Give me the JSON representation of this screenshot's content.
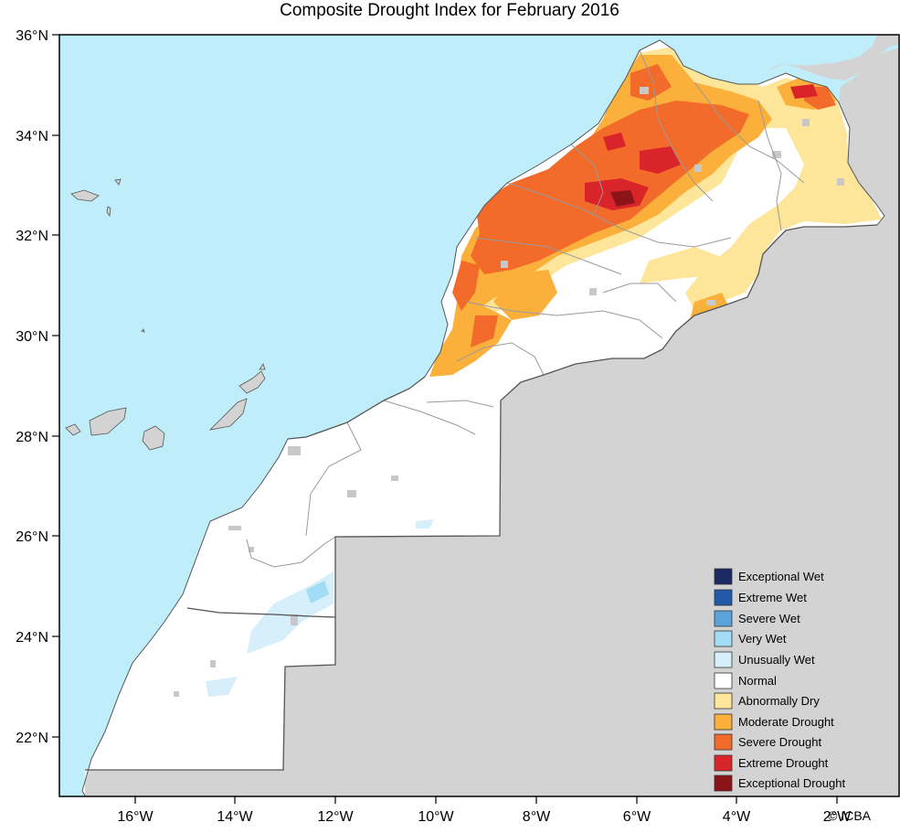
{
  "title": "Composite Drought Index for February 2016",
  "credit": "© ICBA",
  "axes": {
    "lat_labels": [
      "36°N",
      "34°N",
      "32°N",
      "30°N",
      "28°N",
      "26°N",
      "24°N",
      "22°N"
    ],
    "lon_labels": [
      "16°W",
      "14°W",
      "12°W",
      "10°W",
      "8°W",
      "6°W",
      "4°W",
      "2°W"
    ]
  },
  "colors": {
    "ocean": "#bfeefa",
    "land_outside": "#d3d3d3",
    "normal": "#ffffff",
    "no_data": "#c8c8c8",
    "border": "#555555",
    "province_line": "#9a9a9a"
  },
  "legend": [
    {
      "label": "Exceptional Wet",
      "color": "#1c2a63"
    },
    {
      "label": "Extreme Wet",
      "color": "#2259a8"
    },
    {
      "label": "Severe Wet",
      "color": "#5aa4db"
    },
    {
      "label": "Very Wet",
      "color": "#a3dcf5"
    },
    {
      "label": "Unusually Wet",
      "color": "#d6effa"
    },
    {
      "label": "Normal",
      "color": "#ffffff"
    },
    {
      "label": "Abnormally Dry",
      "color": "#fde69a"
    },
    {
      "label": "Moderate Drought",
      "color": "#fbb03b"
    },
    {
      "label": "Severe Drought",
      "color": "#f26b2a"
    },
    {
      "label": "Extreme Drought",
      "color": "#d9242a"
    },
    {
      "label": "Exceptional Drought",
      "color": "#8c1418"
    }
  ]
}
